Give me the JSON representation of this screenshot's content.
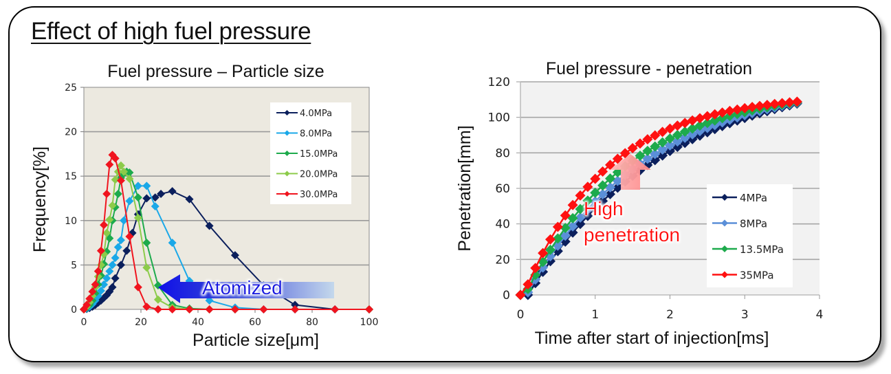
{
  "slide": {
    "title": "Effect of high fuel pressure"
  },
  "chart_data": [
    {
      "type": "line",
      "title": "Fuel pressure – Particle size",
      "xlabel": "Particle size[μm]",
      "ylabel": "Frequency[%]",
      "xlim": [
        0,
        100
      ],
      "ylim": [
        0,
        25
      ],
      "xticks": [
        0,
        20,
        40,
        60,
        80,
        100
      ],
      "yticks": [
        0,
        5,
        10,
        15,
        20,
        25
      ],
      "grid": "horizontal",
      "background": "#ECE9E0",
      "legend_position": "top-right",
      "annotation": {
        "text": "Atomized",
        "arrow": "left",
        "color": "#1515E0"
      },
      "series": [
        {
          "name": "4.0MPa",
          "color": "#0B1F5C",
          "x": [
            0,
            1,
            2,
            3,
            4,
            5,
            6,
            7,
            8,
            9,
            10,
            11,
            13,
            15,
            17,
            19,
            22,
            25,
            27,
            31,
            37,
            44,
            53,
            63,
            74,
            88,
            100
          ],
          "y": [
            0,
            0.05,
            0.15,
            0.3,
            0.5,
            0.75,
            1.0,
            1.3,
            1.6,
            2.0,
            2.5,
            3.5,
            5.0,
            6.6,
            8.6,
            10.7,
            12.5,
            12.6,
            13.0,
            13.3,
            12.4,
            9.4,
            6.1,
            2.7,
            0.5,
            0.0,
            0.0
          ]
        },
        {
          "name": "8.0MPa",
          "color": "#1AA8E8",
          "x": [
            0,
            1,
            2,
            3,
            4,
            5,
            6,
            7,
            8,
            9,
            10,
            11,
            12,
            13,
            14,
            16,
            19,
            22,
            25,
            31,
            37,
            44,
            53,
            63,
            74,
            88,
            100
          ],
          "y": [
            0,
            0.1,
            0.3,
            0.6,
            1.0,
            1.5,
            2.1,
            2.8,
            3.5,
            4.3,
            5.0,
            5.8,
            7.0,
            7.8,
            10.0,
            12.2,
            13.9,
            13.9,
            11.6,
            7.5,
            3.2,
            1.0,
            0.2,
            0.0,
            0.0,
            0.0,
            0.0
          ]
        },
        {
          "name": "15.0MPa",
          "color": "#1DAA4C",
          "x": [
            0,
            1,
            2,
            3,
            4,
            5,
            6,
            7,
            8,
            9,
            10,
            11,
            12,
            13,
            14,
            15,
            16,
            19,
            22,
            26,
            31,
            37,
            44,
            53,
            100
          ],
          "y": [
            0,
            0.2,
            0.5,
            1.0,
            1.8,
            2.8,
            3.8,
            5.1,
            6.5,
            8.0,
            10.0,
            11.5,
            13.0,
            14.8,
            15.3,
            15.5,
            15.4,
            12.6,
            7.5,
            2.7,
            0.5,
            0.1,
            0.0,
            0.0,
            0.0
          ]
        },
        {
          "name": "20.0MPa",
          "color": "#8CCB4A",
          "x": [
            0,
            1,
            2,
            3,
            4,
            5,
            6,
            7,
            8,
            9,
            10,
            11,
            12,
            13,
            14,
            16,
            19,
            22,
            26,
            31,
            37,
            100
          ],
          "y": [
            0,
            0.3,
            0.8,
            1.5,
            2.5,
            3.7,
            5.0,
            6.2,
            8.6,
            10.1,
            11.7,
            14.6,
            15.5,
            16.2,
            15.5,
            14.7,
            10.3,
            4.7,
            1.1,
            0.2,
            0.0,
            0.0
          ]
        },
        {
          "name": "30.0MPa",
          "color": "#F0141E",
          "x": [
            0,
            1,
            2,
            3,
            4,
            5,
            6,
            7,
            8,
            9,
            10,
            11,
            13,
            16,
            19,
            22,
            26,
            31,
            37,
            44,
            53,
            63,
            74,
            88,
            100
          ],
          "y": [
            0,
            0.5,
            1.2,
            2.0,
            2.8,
            4.3,
            6.6,
            9.5,
            13.0,
            16.3,
            17.4,
            17.0,
            14.5,
            8.2,
            2.5,
            0.3,
            0.0,
            0.0,
            0.0,
            0.0,
            0.0,
            0.0,
            0.0,
            0.0,
            0.0
          ]
        }
      ]
    },
    {
      "type": "line",
      "title": "Fuel pressure - penetration",
      "xlabel": "Time after start of injection[ms]",
      "ylabel": "Penetration[mm]",
      "xlim": [
        0,
        4
      ],
      "ylim": [
        0,
        120
      ],
      "xticks": [
        0,
        1,
        2,
        3,
        4
      ],
      "yticks": [
        0,
        20,
        40,
        60,
        80,
        100,
        120
      ],
      "grid": "horizontal",
      "background": "#F2F2F2",
      "legend_position": "right",
      "annotation": {
        "text": "High penetration",
        "arrow": "up",
        "color": "#FF1010"
      },
      "series": [
        {
          "name": "4MPa",
          "color": "#0B1F5C",
          "k": 0.55,
          "ymax": 125,
          "t0": 0.1
        },
        {
          "name": "8MPa",
          "color": "#5B8FD8",
          "k": 0.62,
          "ymax": 121,
          "t0": 0.08
        },
        {
          "name": "13.5MPa",
          "color": "#1DAA4C",
          "k": 0.72,
          "ymax": 117,
          "t0": 0.06
        },
        {
          "name": "35MPa",
          "color": "#FF1010",
          "k": 0.9,
          "ymax": 113,
          "t0": 0.04
        }
      ],
      "x_start": 0,
      "x_end": 3.7,
      "x_step": 0.1,
      "values_note": "Penetration approx. y = ymax*(1-exp(-k*(t-t0))) sampled every 0.1 ms; 35MPa ≈ 102 mm, 4MPa ≈ 98 mm at 3.7 ms"
    }
  ]
}
